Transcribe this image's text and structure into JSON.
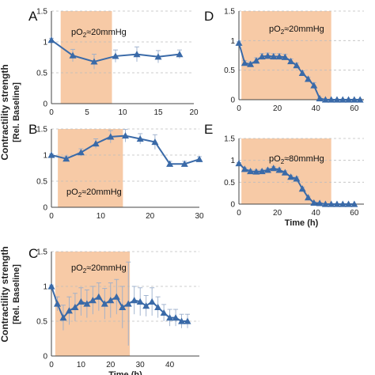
{
  "figure": {
    "ylabel_line1": "Contractility strength",
    "ylabel_line2": "[Rel. Baseline]"
  },
  "colors": {
    "line": "#3a6aa8",
    "shade": "#f7caa6",
    "grid": "#bdbdbd",
    "error": "#9aaecb"
  },
  "chart_data": [
    {
      "panel": "A",
      "type": "line",
      "annotation": "pO₂≈20mmHg",
      "xlabel": "",
      "xlim": [
        0,
        20
      ],
      "ylim": [
        0,
        1.5
      ],
      "xticks": [
        0,
        5,
        10,
        15,
        20
      ],
      "yticks": [
        0,
        0.5,
        1,
        1.5
      ],
      "shade": [
        1.3,
        8.5
      ],
      "x": [
        0,
        3,
        6,
        9,
        12,
        15,
        18
      ],
      "y": [
        1.03,
        0.78,
        0.68,
        0.77,
        0.8,
        0.76,
        0.8
      ],
      "err": [
        0.03,
        0.1,
        0.12,
        0.1,
        0.12,
        0.1,
        0.07
      ]
    },
    {
      "panel": "B",
      "type": "line",
      "annotation": "pO₂≈20mmHg",
      "xlabel": "",
      "xlim": [
        0,
        30
      ],
      "ylim": [
        0,
        1.5
      ],
      "xticks": [
        0,
        10,
        20,
        30
      ],
      "yticks": [
        0,
        0.5,
        1,
        1.5
      ],
      "shade": [
        1.3,
        14.5
      ],
      "x": [
        0,
        3,
        6,
        9,
        12,
        15,
        18,
        21,
        24,
        27,
        30
      ],
      "y": [
        1.0,
        0.93,
        1.05,
        1.22,
        1.35,
        1.37,
        1.31,
        1.25,
        0.83,
        0.83,
        0.92
      ],
      "err": [
        0.02,
        0.05,
        0.07,
        0.09,
        0.12,
        0.12,
        0.1,
        0.14,
        0.05,
        0.05,
        0.05
      ]
    },
    {
      "panel": "C",
      "type": "line",
      "annotation": "pO₂≈20mmHg",
      "xlabel": "Time (h)",
      "xlim": [
        0,
        50
      ],
      "ylim": [
        0,
        1.5
      ],
      "xticks": [
        0,
        10,
        20,
        30,
        40
      ],
      "yticks": [
        0,
        0.5,
        1,
        1.5
      ],
      "shade": [
        1.3,
        26.5
      ],
      "x": [
        0,
        2,
        4,
        6,
        8,
        10,
        12,
        14,
        16,
        18,
        20,
        22,
        24,
        26,
        28,
        30,
        32,
        34,
        36,
        38,
        40,
        42,
        44,
        46
      ],
      "y": [
        1.0,
        0.75,
        0.55,
        0.65,
        0.7,
        0.78,
        0.75,
        0.8,
        0.85,
        0.75,
        0.8,
        0.85,
        0.7,
        0.75,
        0.8,
        0.78,
        0.72,
        0.78,
        0.7,
        0.62,
        0.55,
        0.55,
        0.5,
        0.5
      ],
      "err": [
        0.02,
        0.1,
        0.18,
        0.2,
        0.2,
        0.2,
        0.2,
        0.2,
        0.2,
        0.22,
        0.25,
        0.25,
        0.3,
        0.6,
        0.2,
        0.2,
        0.15,
        0.2,
        0.15,
        0.12,
        0.12,
        0.12,
        0.1,
        0.1
      ]
    },
    {
      "panel": "D",
      "type": "line",
      "annotation": "pO₂≈20mmHg",
      "xlabel": "",
      "xlim": [
        0,
        65
      ],
      "ylim": [
        0,
        1.5
      ],
      "xticks": [
        0,
        20,
        40,
        60
      ],
      "yticks": [
        0,
        0.5,
        1,
        1.5
      ],
      "shade": [
        1.3,
        48
      ],
      "x": [
        0,
        3,
        6,
        9,
        12,
        15,
        18,
        21,
        24,
        27,
        30,
        33,
        36,
        39,
        42,
        45,
        48,
        51,
        54,
        57,
        60,
        63
      ],
      "y": [
        0.96,
        0.62,
        0.6,
        0.66,
        0.73,
        0.74,
        0.73,
        0.73,
        0.72,
        0.65,
        0.58,
        0.45,
        0.35,
        0.24,
        0.02,
        0.0,
        0.0,
        0.0,
        0.0,
        0.0,
        0.0,
        0.0
      ],
      "err": [
        0.02,
        0.04,
        0.04,
        0.05,
        0.05,
        0.05,
        0.05,
        0.05,
        0.05,
        0.04,
        0.04,
        0.04,
        0.03,
        0.05,
        0.02,
        0.01,
        0.01,
        0.01,
        0.01,
        0.01,
        0.01,
        0.01
      ]
    },
    {
      "panel": "E",
      "type": "line",
      "annotation": "pO₂≈80mmHg",
      "xlabel": "Time (h)",
      "xlim": [
        0,
        65
      ],
      "ylim": [
        0,
        1.5
      ],
      "xticks": [
        0,
        20,
        40,
        60
      ],
      "yticks": [
        0,
        0.5,
        1,
        1.5
      ],
      "shade": [
        1.3,
        48
      ],
      "x": [
        0,
        3,
        6,
        9,
        12,
        15,
        18,
        21,
        24,
        27,
        30,
        33,
        36,
        39,
        42,
        45,
        48,
        51,
        54,
        57,
        60
      ],
      "y": [
        0.93,
        0.8,
        0.75,
        0.74,
        0.75,
        0.78,
        0.82,
        0.78,
        0.72,
        0.62,
        0.58,
        0.35,
        0.15,
        0.03,
        0.02,
        0.0,
        0.0,
        0.0,
        0.0,
        0.0,
        0.0
      ],
      "err": [
        0.02,
        0.03,
        0.04,
        0.04,
        0.04,
        0.04,
        0.04,
        0.04,
        0.04,
        0.04,
        0.04,
        0.04,
        0.03,
        0.02,
        0.01,
        0.01,
        0.01,
        0.01,
        0.01,
        0.01,
        0.01
      ]
    }
  ]
}
